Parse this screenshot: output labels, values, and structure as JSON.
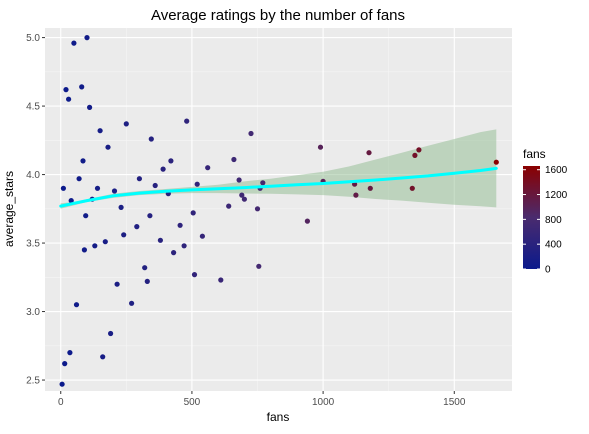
{
  "chart_data": {
    "type": "scatter",
    "title": "Average ratings by the number of fans",
    "xlabel": "fans",
    "ylabel": "average_stars",
    "xlim": [
      -60,
      1720
    ],
    "ylim": [
      2.42,
      5.07
    ],
    "grid": true,
    "xticks": [
      0,
      500,
      1000,
      1500
    ],
    "xtick_labels": [
      "0",
      "500",
      "1000",
      "1500"
    ],
    "yticks": [
      2.5,
      3.0,
      3.5,
      4.0,
      4.5,
      5.0
    ],
    "ytick_labels": [
      "2.5",
      "3.0",
      "3.5",
      "4.0",
      "4.5",
      "5.0"
    ],
    "legend": {
      "title": "fans",
      "position": "right",
      "min": 0,
      "max": 1660,
      "ticks": [
        0,
        400,
        800,
        1200,
        1600
      ],
      "tick_labels": [
        "0",
        "400",
        "800",
        "1200",
        "1600"
      ],
      "color_low": "#0b1a8c",
      "color_mid": "#4a2b6e",
      "color_high": "#8b0000"
    },
    "scatter_points": {
      "x": [
        1660,
        1365,
        1350,
        1340,
        1175,
        1180,
        1120,
        1125,
        990,
        1000,
        940,
        770,
        760,
        755,
        750,
        725,
        700,
        680,
        690,
        660,
        640,
        610,
        560,
        540,
        520,
        510,
        505,
        480,
        470,
        455,
        430,
        420,
        410,
        390,
        380,
        360,
        345,
        340,
        330,
        320,
        300,
        290,
        270,
        250,
        240,
        230,
        215,
        205,
        190,
        180,
        170,
        160,
        150,
        140,
        130,
        120,
        110,
        100,
        95,
        90,
        85,
        80,
        70,
        60,
        50,
        40,
        30,
        20,
        10,
        5,
        35,
        15
      ],
      "y": [
        4.09,
        4.18,
        4.14,
        3.9,
        4.16,
        3.9,
        3.93,
        3.85,
        4.2,
        3.95,
        3.66,
        3.94,
        3.9,
        3.33,
        3.75,
        4.3,
        3.82,
        3.96,
        3.85,
        4.11,
        3.77,
        3.23,
        4.05,
        3.55,
        3.93,
        3.27,
        3.72,
        4.39,
        3.48,
        3.63,
        3.43,
        4.1,
        3.86,
        4.04,
        3.52,
        3.92,
        4.26,
        3.7,
        3.22,
        3.32,
        3.97,
        3.62,
        3.06,
        4.37,
        3.56,
        3.76,
        3.2,
        3.88,
        2.84,
        4.2,
        3.51,
        2.67,
        4.32,
        3.9,
        3.48,
        3.82,
        4.49,
        5.0,
        3.7,
        3.45,
        4.1,
        4.64,
        3.97,
        3.05,
        4.96,
        3.81,
        4.55,
        4.62,
        3.9,
        2.47,
        2.7,
        2.62
      ]
    },
    "trend_line": {
      "x": [
        0,
        50,
        100,
        200,
        300,
        400,
        500,
        600,
        700,
        800,
        900,
        1000,
        1100,
        1200,
        1300,
        1400,
        1500,
        1600,
        1660
      ],
      "y": [
        3.77,
        3.79,
        3.81,
        3.845,
        3.865,
        3.878,
        3.888,
        3.896,
        3.905,
        3.915,
        3.925,
        3.935,
        3.947,
        3.96,
        3.975,
        3.99,
        4.01,
        4.03,
        4.045
      ],
      "ci_upper": [
        3.79,
        3.8,
        3.82,
        3.86,
        3.88,
        3.895,
        3.91,
        3.925,
        3.95,
        3.97,
        3.995,
        4.02,
        4.06,
        4.11,
        4.16,
        4.21,
        4.26,
        4.31,
        4.33
      ],
      "ci_lower": [
        3.75,
        3.775,
        3.8,
        3.83,
        3.85,
        3.86,
        3.865,
        3.865,
        3.862,
        3.86,
        3.855,
        3.85,
        3.838,
        3.822,
        3.81,
        3.795,
        3.78,
        3.768,
        3.76
      ],
      "line_color": "#00ffff",
      "ci_color": "#8fbc8f"
    }
  }
}
